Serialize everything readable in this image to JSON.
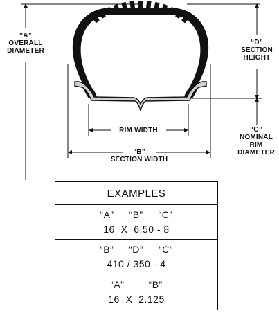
{
  "labels": {
    "overall_diameter": [
      "“A”",
      "OVERALL",
      "DIAMETER"
    ],
    "section_height": [
      "“D”",
      "SECTION",
      "HEIGHT"
    ],
    "rim_width": "RIM WIDTH",
    "section_width": [
      "“B”",
      "SECTION WIDTH"
    ],
    "nominal_rim_diameter": [
      "“C”",
      "NOMINAL",
      "RIM",
      "DIAMETER"
    ]
  },
  "examples": {
    "title": "EXAMPLES",
    "rows": [
      {
        "keys": "“A”     “B”     “C”",
        "value": "16  X  6.50 - 8"
      },
      {
        "keys": "“B”     “D”     “C”",
        "value": "410 / 350 - 4"
      },
      {
        "keys": "“A”        “B”",
        "value": "16  X  2.125"
      }
    ]
  }
}
